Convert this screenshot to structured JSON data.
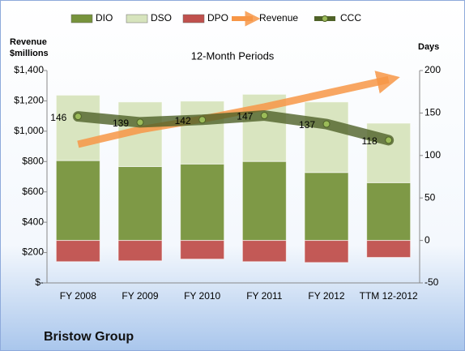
{
  "chart_data": {
    "type": "bar",
    "title": "Bristow Group",
    "subtitle": "12-Month Periods",
    "y_label": [
      "Revenue",
      "$millions"
    ],
    "y2_label": "Days",
    "categories": [
      "FY 2008",
      "FY 2009",
      "FY 2010",
      "FY 2011",
      "FY 2012",
      "TTM 12-2012"
    ],
    "series": [
      {
        "name": "DIO",
        "type": "bar",
        "axis": "y2",
        "color": "#77933c",
        "values": [
          94,
          87,
          90,
          93,
          80,
          68
        ]
      },
      {
        "name": "DSO",
        "type": "bar",
        "axis": "y2",
        "color": "#d7e4bd",
        "values": [
          77,
          76,
          74,
          79,
          83,
          70
        ]
      },
      {
        "name": "DPO",
        "type": "bar",
        "axis": "y2",
        "color": "#c0504d",
        "values": [
          -25,
          -24,
          -22,
          -25,
          -26,
          -20
        ]
      },
      {
        "name": "Revenue",
        "type": "line",
        "axis": "y",
        "color": "#f79646",
        "values": [
          914,
          1010,
          1080,
          1160,
          1250,
          1340
        ]
      },
      {
        "name": "CCC",
        "type": "line",
        "axis": "y2",
        "color": "#4f6228",
        "values": [
          146,
          139,
          142,
          147,
          137,
          118
        ]
      }
    ],
    "ylim": [
      0,
      1400
    ],
    "yticks": [
      {
        "value": 0,
        "label": "$-"
      },
      {
        "value": 200,
        "label": "$200"
      },
      {
        "value": 400,
        "label": "$400"
      },
      {
        "value": 600,
        "label": "$600"
      },
      {
        "value": 800,
        "label": "$800"
      },
      {
        "value": 1000,
        "label": "$1,000"
      },
      {
        "value": 1200,
        "label": "$1,200"
      },
      {
        "value": 1400,
        "label": "$1,400"
      }
    ],
    "y2lim": [
      -50,
      200
    ],
    "y2ticks": [
      -50,
      0,
      50,
      100,
      150,
      200
    ],
    "legend": "top"
  }
}
